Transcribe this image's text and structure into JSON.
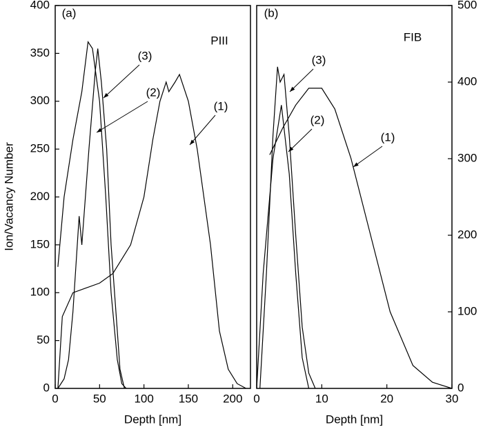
{
  "chart_data": [
    {
      "type": "line",
      "panel_label": "(a)",
      "label": "PIII",
      "ylabel": "Ion/Vacancy Number",
      "xlabel": "Depth [nm]",
      "xlim": [
        0,
        220
      ],
      "ylim": [
        0,
        400
      ],
      "xticks": [
        0,
        50,
        100,
        150,
        200
      ],
      "yticks": [
        0,
        50,
        100,
        150,
        200,
        250,
        300,
        350,
        400
      ],
      "y_axis_side": "left",
      "series": [
        {
          "name": "(1)",
          "color": "#000000",
          "x": [
            3,
            8,
            20,
            35,
            50,
            65,
            85,
            100,
            110,
            118,
            125,
            128,
            135,
            140,
            150,
            160,
            175,
            185,
            195,
            205,
            215
          ],
          "values": [
            0,
            75,
            100,
            105,
            110,
            120,
            150,
            200,
            260,
            300,
            320,
            310,
            320,
            328,
            300,
            250,
            150,
            60,
            20,
            5,
            0
          ]
        },
        {
          "name": "(2)",
          "color": "#000000",
          "x": [
            3,
            10,
            20,
            30,
            37,
            42,
            50,
            57,
            63,
            70,
            75,
            80
          ],
          "values": [
            127,
            200,
            260,
            310,
            362,
            355,
            300,
            200,
            100,
            30,
            5,
            0
          ]
        },
        {
          "name": "(3)",
          "color": "#000000",
          "x": [
            3,
            10,
            15,
            20,
            27,
            30,
            38,
            45,
            48,
            52,
            58,
            63,
            70,
            73,
            78
          ],
          "values": [
            0,
            10,
            30,
            80,
            180,
            150,
            250,
            330,
            355,
            320,
            250,
            150,
            60,
            20,
            0
          ]
        }
      ]
    },
    {
      "type": "line",
      "panel_label": "(b)",
      "label": "FIB",
      "xlabel": "Depth [nm]",
      "xlim": [
        0,
        30
      ],
      "ylim": [
        0,
        500
      ],
      "xticks": [
        0,
        10,
        20,
        30
      ],
      "yticks": [
        0,
        100,
        200,
        300,
        400,
        500
      ],
      "y_axis_side": "right",
      "series": [
        {
          "name": "(1)",
          "color": "#000000",
          "x": [
            2,
            4,
            6,
            8,
            10,
            12,
            14.5,
            17.5,
            20.5,
            24,
            27,
            30
          ],
          "values": [
            305,
            340,
            370,
            392,
            392,
            365,
            300,
            200,
            100,
            30,
            8,
            0
          ]
        },
        {
          "name": "(2)",
          "color": "#000000",
          "x": [
            0,
            1,
            2.5,
            3.8,
            5,
            6,
            7,
            8
          ],
          "values": [
            0,
            150,
            300,
            370,
            280,
            150,
            40,
            0
          ]
        },
        {
          "name": "(3)",
          "color": "#000000",
          "x": [
            0.5,
            1.5,
            2.5,
            3.2,
            3.6,
            4.2,
            5,
            6,
            7,
            8,
            9
          ],
          "values": [
            0,
            150,
            330,
            420,
            400,
            410,
            330,
            200,
            80,
            20,
            0
          ]
        }
      ]
    }
  ]
}
